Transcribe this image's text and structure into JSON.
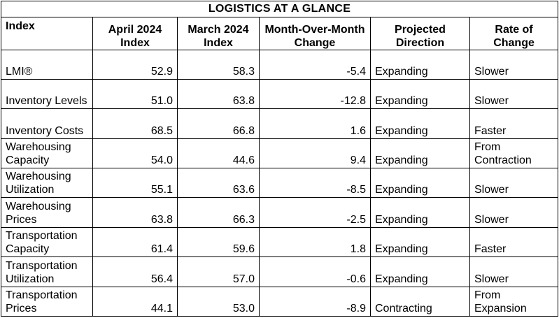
{
  "title": "LOGISTICS AT A GLANCE",
  "headers": {
    "index": "Index",
    "april": "April 2024 Index",
    "march": "March 2024 Index",
    "mom": "Month-Over-Month Change",
    "direction": "Projected Direction",
    "rate": "Rate of Change"
  },
  "rows": [
    {
      "index": "LMI®",
      "april": "52.9",
      "march": "58.3",
      "mom": "-5.4",
      "direction": "Expanding",
      "rate": "Slower"
    },
    {
      "index": "Inventory Levels",
      "april": "51.0",
      "march": "63.8",
      "mom": "-12.8",
      "direction": "Expanding",
      "rate": "Slower"
    },
    {
      "index": "Inventory Costs",
      "april": "68.5",
      "march": "66.8",
      "mom": "1.6",
      "direction": "Expanding",
      "rate": "Faster"
    },
    {
      "index": "Warehousing Capacity",
      "april": "54.0",
      "march": "44.6",
      "mom": "9.4",
      "direction": "Expanding",
      "rate": "From Contraction"
    },
    {
      "index": "Warehousing Utilization",
      "april": "55.1",
      "march": "63.6",
      "mom": "-8.5",
      "direction": "Expanding",
      "rate": "Slower"
    },
    {
      "index": "Warehousing Prices",
      "april": "63.8",
      "march": "66.3",
      "mom": "-2.5",
      "direction": "Expanding",
      "rate": "Slower"
    },
    {
      "index": "Transportation Capacity",
      "april": "61.4",
      "march": "59.6",
      "mom": "1.8",
      "direction": "Expanding",
      "rate": "Faster"
    },
    {
      "index": "Transportation Utilization",
      "april": "56.4",
      "march": "57.0",
      "mom": "-0.6",
      "direction": "Expanding",
      "rate": "Slower"
    },
    {
      "index": "Transportation Prices",
      "april": "44.1",
      "march": "53.0",
      "mom": "-8.9",
      "direction": "Contracting",
      "rate": "From Expansion"
    }
  ]
}
